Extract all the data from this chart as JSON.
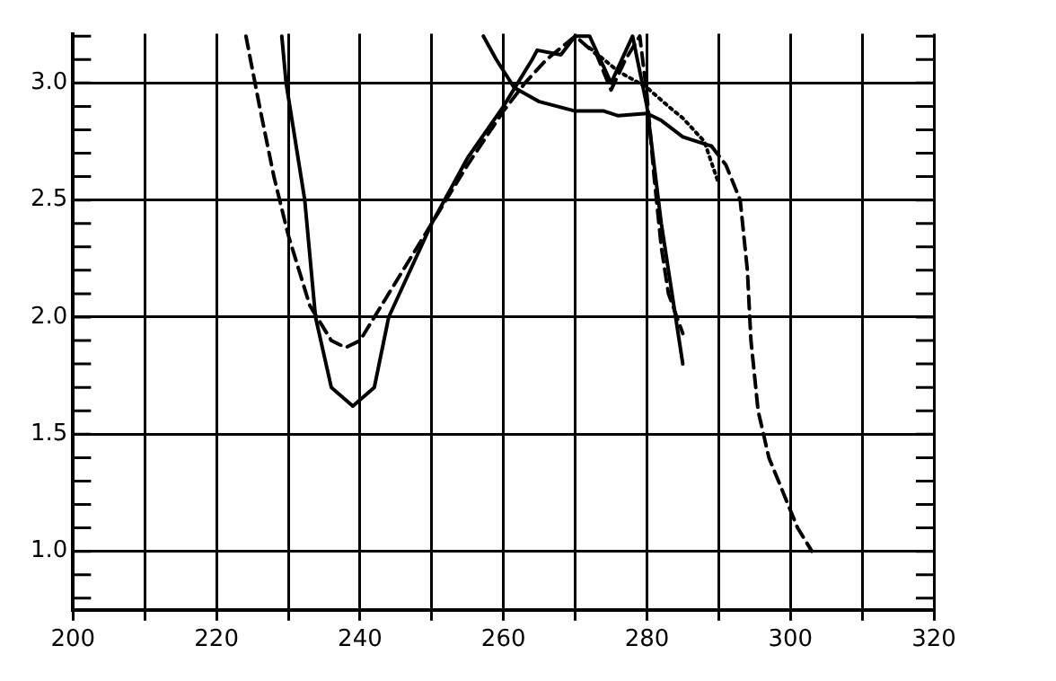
{
  "chart_data": {
    "type": "line",
    "series": [
      {
        "color": "#000000",
        "line_style": "solid",
        "x": [
          229.1,
          229.7,
          232.3,
          233.8,
          236,
          239,
          242,
          244,
          250,
          255,
          260,
          264,
          264.7,
          268,
          270,
          272,
          275,
          278,
          280,
          282,
          284,
          285
        ],
        "values": [
          3.2,
          3.0,
          2.5,
          2.0,
          1.7,
          1.62,
          1.7,
          2.0,
          2.4,
          2.68,
          2.9,
          3.1,
          3.14,
          3.12,
          3.2,
          3.2,
          3.0,
          3.2,
          2.9,
          2.4,
          2.0,
          1.8
        ]
      },
      {
        "color": "#000000",
        "line_style": "dashed",
        "x": [
          224.1,
          226,
          228,
          230,
          233,
          236,
          238,
          240,
          243,
          246,
          250,
          255,
          260,
          263,
          266,
          270,
          273,
          275,
          277,
          279,
          280,
          281,
          282,
          283,
          285
        ],
        "values": [
          3.2,
          2.9,
          2.6,
          2.35,
          2.05,
          1.9,
          1.87,
          1.9,
          2.05,
          2.2,
          2.4,
          2.65,
          2.88,
          3.0,
          3.1,
          3.2,
          3.12,
          2.97,
          3.1,
          3.2,
          2.95,
          2.6,
          2.3,
          2.1,
          1.93
        ]
      },
      {
        "color": "#000000",
        "line_style": "dotted",
        "x": [
          272,
          276,
          280,
          283,
          285,
          288,
          290
        ],
        "values": [
          3.15,
          3.05,
          2.98,
          2.9,
          2.85,
          2.75,
          2.57
        ]
      },
      {
        "color": "#000000",
        "line_style": "solid",
        "x": [
          257.2,
          259,
          261.5,
          265,
          270,
          274,
          276,
          280,
          282,
          285,
          288,
          289
        ],
        "values": [
          3.2,
          3.1,
          2.98,
          2.92,
          2.88,
          2.88,
          2.86,
          2.87,
          2.84,
          2.77,
          2.74,
          2.73
        ]
      },
      {
        "color": "#000000",
        "line_style": "dashed",
        "x": [
          289,
          291,
          293,
          294,
          294.5,
          295.5,
          297,
          299,
          301,
          303
        ],
        "values": [
          2.73,
          2.65,
          2.5,
          2.2,
          1.9,
          1.6,
          1.4,
          1.25,
          1.1,
          1.0
        ]
      }
    ],
    "xlim": [
      200,
      320
    ],
    "xticks": [
      200,
      {
        "value": 210,
        "label": null
      },
      220,
      {
        "value": 230,
        "label": null
      },
      240,
      {
        "value": 250,
        "label": null
      },
      260,
      {
        "value": 270,
        "label": null
      },
      280,
      {
        "value": 290,
        "label": null
      },
      300,
      {
        "value": 310,
        "label": null
      },
      320
    ],
    "ylim": [
      0.75,
      3.21
    ],
    "yticks": [
      {
        "value": 0.8,
        "label": null
      },
      {
        "value": 0.9,
        "label": null
      },
      {
        "value": 1.0,
        "label": "1.0"
      },
      {
        "value": 1.1,
        "label": null
      },
      {
        "value": 1.2,
        "label": null
      },
      {
        "value": 1.3,
        "label": null
      },
      {
        "value": 1.4,
        "label": null
      },
      {
        "value": 1.5,
        "label": "1.5"
      },
      {
        "value": 1.6,
        "label": null
      },
      {
        "value": 1.7,
        "label": null
      },
      {
        "value": 1.8,
        "label": null
      },
      {
        "value": 1.9,
        "label": null
      },
      {
        "value": 2.0,
        "label": "2.0"
      },
      {
        "value": 2.1,
        "label": null
      },
      {
        "value": 2.2,
        "label": null
      },
      {
        "value": 2.3,
        "label": null
      },
      {
        "value": 2.4,
        "label": null
      },
      {
        "value": 2.5,
        "label": "2.5"
      },
      {
        "value": 2.6,
        "label": null
      },
      {
        "value": 2.7,
        "label": null
      },
      {
        "value": 2.8,
        "label": null
      },
      {
        "value": 2.9,
        "label": null
      },
      {
        "value": 3.0,
        "label": "3.0"
      },
      {
        "value": 3.1,
        "label": null
      },
      {
        "value": 3.2,
        "label": null
      }
    ],
    "grid": true
  }
}
